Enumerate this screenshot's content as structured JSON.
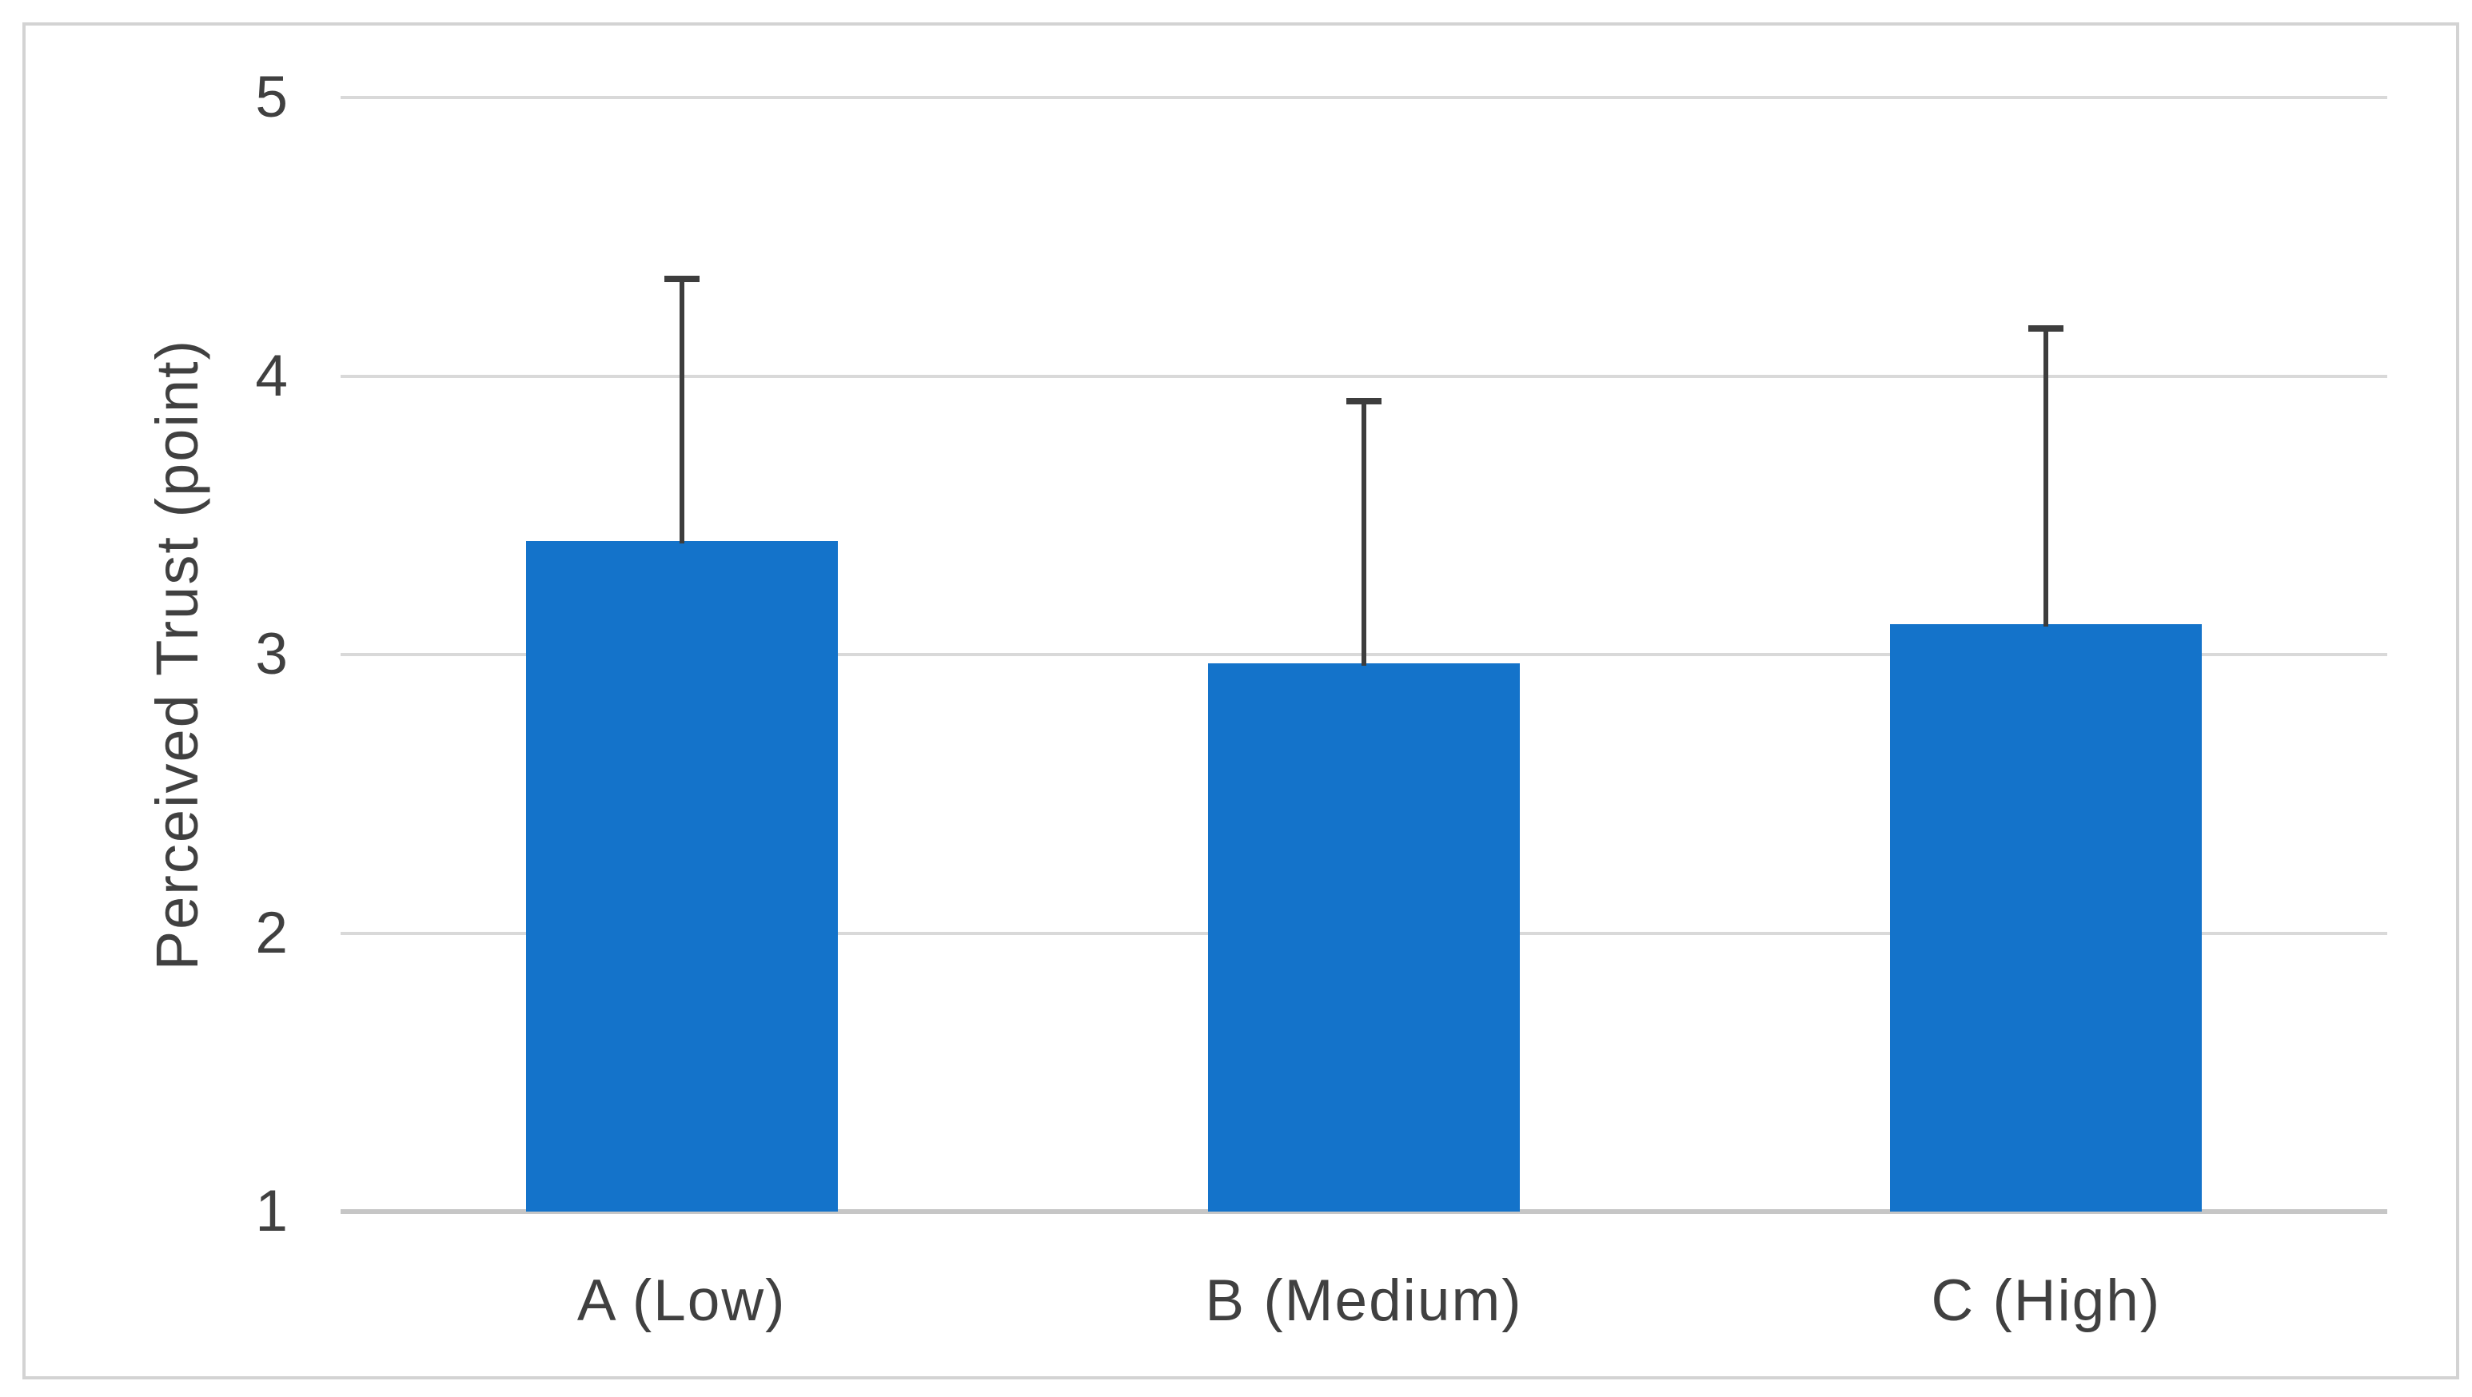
{
  "chart_data": {
    "type": "bar",
    "categories": [
      "A (Low)",
      "B (Medium)",
      "C (High)"
    ],
    "values": [
      3.4,
      2.96,
      3.1
    ],
    "error_top": [
      4.35,
      3.91,
      4.17
    ],
    "ylabel": "Perceived Trust (point)",
    "xlabel": "",
    "ylim": [
      1,
      5
    ],
    "yticks": [
      1,
      2,
      3,
      4,
      5
    ],
    "grid": true,
    "legend": "none",
    "bar_color": "#1473ca",
    "error_bar_color": "#3d3d3d",
    "gridline_color": "#d9d9d9",
    "axis_line_color": "#c6c6c6",
    "text_color": "#404040",
    "frame_border_color": "#d3d3d3",
    "background_color": "#ffffff"
  }
}
